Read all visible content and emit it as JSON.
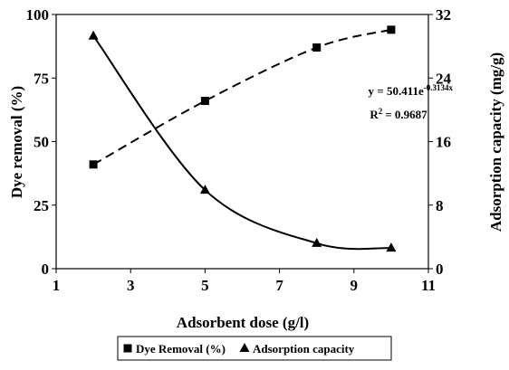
{
  "chart_data": {
    "type": "scatter",
    "x_label": "Adsorbent dose (g/l)",
    "y_label": "Dye removal (%)",
    "y2_label": "Adsorption capacity (mg/g)",
    "x": [
      2,
      5,
      8,
      10
    ],
    "xlim": [
      1,
      11
    ],
    "xticks": [
      1,
      3,
      5,
      7,
      9,
      11
    ],
    "ylim": [
      0,
      100
    ],
    "yticks": [
      0,
      25,
      50,
      75,
      100
    ],
    "y2lim": [
      0,
      32
    ],
    "y2ticks": [
      0,
      8,
      16,
      24,
      32
    ],
    "series": [
      {
        "name": "Dye Removal (%)",
        "color": "#000000",
        "marker": "square",
        "line_style": "dashed",
        "values": [
          41,
          66,
          87,
          94
        ]
      },
      {
        "name": "Adsorption capacity",
        "color": "#000000",
        "marker": "triangle",
        "line_style": "solid",
        "axis": "y2",
        "values": [
          29.3,
          9.9,
          3.2,
          2.6
        ]
      }
    ],
    "annotation": {
      "equation": "y = 50.411e",
      "exponent": "-0.3134x",
      "r2_label": "R",
      "r2_sup": "2",
      "r2_value": "= 0.9687"
    },
    "legend": "bottom"
  }
}
